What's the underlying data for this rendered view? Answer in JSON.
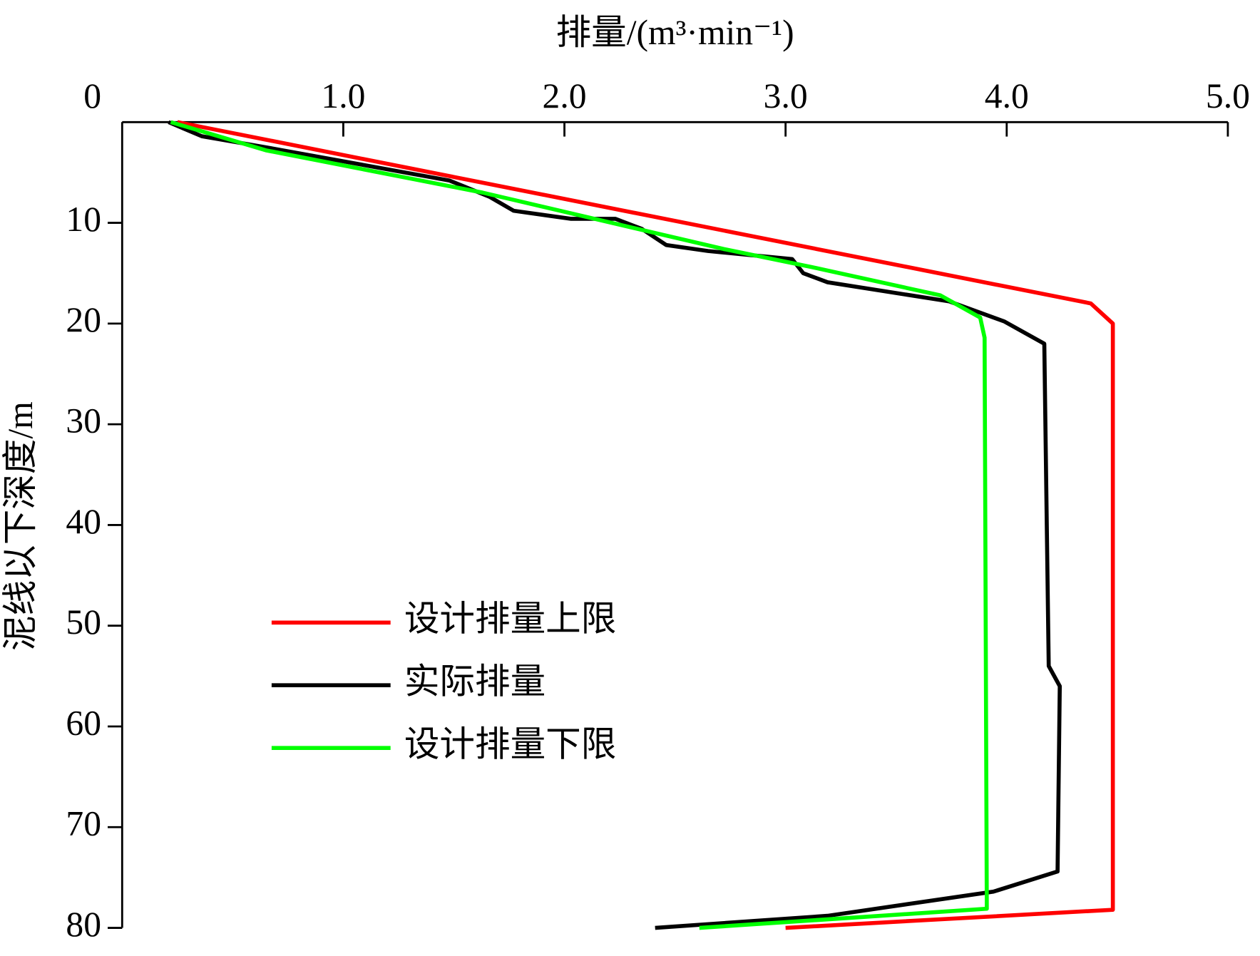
{
  "chart_data": {
    "type": "line",
    "x_label": "排量/(m³·min⁻¹)",
    "y_label": "泥线以下深度/m",
    "xlim": [
      0,
      5
    ],
    "xticks": [
      0,
      {
        "value": 1,
        "label": "1.0"
      },
      {
        "value": 2,
        "label": "2.0"
      },
      {
        "value": 3,
        "label": "3.0"
      },
      {
        "value": 4,
        "label": "4.0"
      },
      {
        "value": 5,
        "label": "5.0"
      }
    ],
    "ylim": [
      0,
      80
    ],
    "yticks": [
      10,
      20,
      30,
      40,
      50,
      60,
      70,
      80
    ],
    "y_inverted": true,
    "x_axis_position": "top",
    "legend": "center-left",
    "series": [
      {
        "name": "设计排量上限",
        "color": "#ff0000",
        "values": [
          0.25,
          4.38,
          4.48,
          4.48,
          3.0
        ],
        "depths": [
          0,
          18,
          20,
          78.2,
          80
        ]
      },
      {
        "name": "实际排量",
        "color": "#000000",
        "values": [
          0.21,
          0.36,
          0.65,
          1.48,
          1.66,
          1.77,
          2.03,
          2.23,
          2.35,
          2.46,
          2.65,
          3.03,
          3.08,
          3.19,
          3.74,
          3.99,
          4.17,
          4.19,
          4.24,
          4.23,
          3.94,
          3.19,
          2.41
        ],
        "depths": [
          0,
          1.4,
          2.5,
          5.8,
          7.4,
          8.8,
          9.6,
          9.6,
          10.6,
          12.2,
          12.8,
          13.6,
          15,
          15.9,
          17.8,
          19.8,
          22,
          54,
          56,
          74.4,
          76.4,
          78.8,
          80
        ]
      },
      {
        "name": "设计排量下限",
        "color": "#00ff00",
        "values": [
          0.22,
          0.65,
          1.63,
          2.72,
          3.12,
          3.7,
          3.88,
          3.9,
          3.91,
          2.61
        ],
        "depths": [
          0,
          2.8,
          7,
          12.6,
          14.4,
          17.2,
          19.4,
          21.4,
          78.1,
          80
        ]
      }
    ]
  }
}
